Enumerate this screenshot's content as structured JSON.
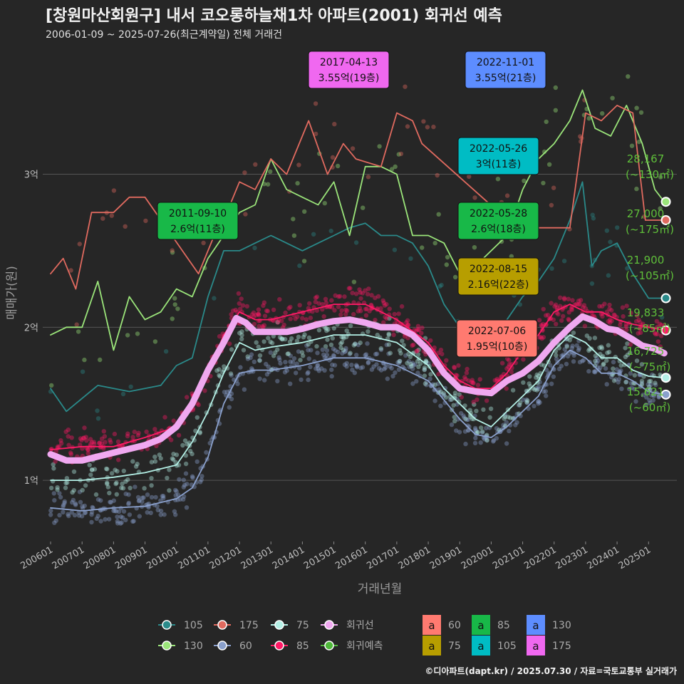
{
  "title": "[창원마산회원구] 내서 코오롱하늘채1차 아파트(2001) 회귀선 예측",
  "subtitle": "2006-01-09 ~ 2025-07-26(최근계약일) 전체 거래건",
  "credit": "©디아파트(dapt.kr) / 2025.07.30 / 자료=국토교통부 실거래가",
  "chart_data": {
    "type": "line",
    "xlabel": "거래년월",
    "ylabel": "매매가(원)",
    "x_ticks": [
      "200601",
      "200701",
      "200801",
      "200901",
      "201001",
      "201101",
      "201201",
      "201301",
      "201401",
      "201501",
      "201601",
      "201701",
      "201801",
      "201901",
      "202001",
      "202101",
      "202201",
      "202301",
      "202401",
      "202501"
    ],
    "y_ticks": [
      {
        "value": 1,
        "label": "1억"
      },
      {
        "value": 2,
        "label": "2억"
      },
      {
        "value": 3,
        "label": "3억"
      }
    ],
    "xlim": [
      2005.75,
      2025.9
    ],
    "ylim": [
      0.6,
      3.85
    ],
    "grid": true,
    "series": [
      {
        "name": "105",
        "color": "#2a8a8a",
        "points": [
          [
            2006.0,
            1.6
          ],
          [
            2006.5,
            1.45
          ],
          [
            2007.5,
            1.62
          ],
          [
            2008.5,
            1.58
          ],
          [
            2009.5,
            1.62
          ],
          [
            2010.0,
            1.75
          ],
          [
            2010.5,
            1.8
          ],
          [
            2011.0,
            2.2
          ],
          [
            2011.5,
            2.5
          ],
          [
            2012.0,
            2.5
          ],
          [
            2012.5,
            2.55
          ],
          [
            2013.0,
            2.6
          ],
          [
            2013.5,
            2.55
          ],
          [
            2014.0,
            2.5
          ],
          [
            2014.5,
            2.55
          ],
          [
            2015.0,
            2.6
          ],
          [
            2015.5,
            2.65
          ],
          [
            2016.0,
            2.68
          ],
          [
            2016.5,
            2.6
          ],
          [
            2017.0,
            2.6
          ],
          [
            2017.5,
            2.55
          ],
          [
            2018.0,
            2.4
          ],
          [
            2018.5,
            2.15
          ],
          [
            2019.0,
            2.0
          ],
          [
            2019.5,
            1.95
          ],
          [
            2020.0,
            1.95
          ],
          [
            2020.5,
            2.05
          ],
          [
            2021.0,
            2.2
          ],
          [
            2021.5,
            2.3
          ],
          [
            2022.0,
            2.45
          ],
          [
            2022.5,
            2.7
          ],
          [
            2022.9,
            2.95
          ],
          [
            2023.2,
            2.4
          ],
          [
            2023.5,
            2.5
          ],
          [
            2024.0,
            2.55
          ],
          [
            2024.5,
            2.35
          ],
          [
            2025.0,
            2.19
          ],
          [
            2025.5,
            2.19
          ]
        ]
      },
      {
        "name": "130",
        "color": "#9be57a",
        "points": [
          [
            2006.0,
            1.95
          ],
          [
            2006.5,
            2.0
          ],
          [
            2007.0,
            2.0
          ],
          [
            2007.5,
            2.3
          ],
          [
            2008.0,
            1.85
          ],
          [
            2008.5,
            2.2
          ],
          [
            2009.0,
            2.05
          ],
          [
            2009.5,
            2.1
          ],
          [
            2010.0,
            2.25
          ],
          [
            2010.5,
            2.2
          ],
          [
            2011.0,
            2.45
          ],
          [
            2011.5,
            2.6
          ],
          [
            2012.0,
            2.75
          ],
          [
            2012.5,
            2.8
          ],
          [
            2013.0,
            3.1
          ],
          [
            2013.5,
            2.9
          ],
          [
            2014.0,
            2.85
          ],
          [
            2014.5,
            2.8
          ],
          [
            2015.0,
            2.95
          ],
          [
            2015.5,
            2.6
          ],
          [
            2016.0,
            3.05
          ],
          [
            2016.5,
            3.05
          ],
          [
            2017.0,
            3.0
          ],
          [
            2017.5,
            2.6
          ],
          [
            2018.0,
            2.6
          ],
          [
            2018.5,
            2.55
          ],
          [
            2019.0,
            2.35
          ],
          [
            2019.5,
            2.4
          ],
          [
            2020.0,
            2.5
          ],
          [
            2020.5,
            2.6
          ],
          [
            2021.0,
            2.9
          ],
          [
            2021.5,
            3.1
          ],
          [
            2022.0,
            3.2
          ],
          [
            2022.5,
            3.35
          ],
          [
            2022.9,
            3.55
          ],
          [
            2023.3,
            3.3
          ],
          [
            2023.8,
            3.25
          ],
          [
            2024.3,
            3.45
          ],
          [
            2024.8,
            3.2
          ],
          [
            2025.2,
            2.9
          ],
          [
            2025.5,
            2.82
          ]
        ]
      },
      {
        "name": "175",
        "color": "#e06a5f",
        "points": [
          [
            2006.0,
            2.35
          ],
          [
            2006.4,
            2.45
          ],
          [
            2006.8,
            2.25
          ],
          [
            2007.3,
            2.75
          ],
          [
            2008.0,
            2.75
          ],
          [
            2008.5,
            2.85
          ],
          [
            2009.0,
            2.85
          ],
          [
            2010.7,
            2.35
          ],
          [
            2011.2,
            2.6
          ],
          [
            2011.6,
            2.75
          ],
          [
            2012.0,
            2.95
          ],
          [
            2012.5,
            2.9
          ],
          [
            2013.0,
            3.1
          ],
          [
            2013.5,
            3.0
          ],
          [
            2014.2,
            3.35
          ],
          [
            2014.8,
            3.0
          ],
          [
            2015.3,
            3.2
          ],
          [
            2015.7,
            3.1
          ],
          [
            2016.5,
            3.05
          ],
          [
            2017.0,
            3.4
          ],
          [
            2017.5,
            3.35
          ],
          [
            2017.8,
            3.2
          ],
          [
            2020.8,
            2.65
          ],
          [
            2022.5,
            2.65
          ],
          [
            2023.0,
            3.4
          ],
          [
            2023.5,
            3.35
          ],
          [
            2024.0,
            3.45
          ],
          [
            2024.5,
            3.4
          ],
          [
            2024.9,
            2.7
          ],
          [
            2025.5,
            2.7
          ]
        ]
      },
      {
        "name": "60",
        "color": "#8aa0cc",
        "points": [
          [
            2006.0,
            0.82
          ],
          [
            2007.0,
            0.8
          ],
          [
            2008.0,
            0.82
          ],
          [
            2009.0,
            0.83
          ],
          [
            2010.0,
            0.88
          ],
          [
            2010.5,
            0.95
          ],
          [
            2011.0,
            1.15
          ],
          [
            2011.5,
            1.5
          ],
          [
            2012.0,
            1.7
          ],
          [
            2012.5,
            1.72
          ],
          [
            2013.0,
            1.72
          ],
          [
            2014.0,
            1.75
          ],
          [
            2015.0,
            1.8
          ],
          [
            2016.0,
            1.8
          ],
          [
            2017.0,
            1.75
          ],
          [
            2018.0,
            1.65
          ],
          [
            2019.0,
            1.4
          ],
          [
            2019.5,
            1.3
          ],
          [
            2020.0,
            1.28
          ],
          [
            2020.5,
            1.35
          ],
          [
            2021.0,
            1.45
          ],
          [
            2021.5,
            1.55
          ],
          [
            2022.0,
            1.75
          ],
          [
            2022.5,
            1.85
          ],
          [
            2023.0,
            1.8
          ],
          [
            2023.5,
            1.7
          ],
          [
            2024.0,
            1.7
          ],
          [
            2024.5,
            1.65
          ],
          [
            2025.0,
            1.58
          ],
          [
            2025.5,
            1.56
          ]
        ]
      },
      {
        "name": "75",
        "color": "#b4f0e6",
        "points": [
          [
            2006.0,
            1.0
          ],
          [
            2007.0,
            1.0
          ],
          [
            2008.0,
            1.02
          ],
          [
            2009.0,
            1.05
          ],
          [
            2010.0,
            1.1
          ],
          [
            2010.5,
            1.25
          ],
          [
            2011.0,
            1.45
          ],
          [
            2011.5,
            1.7
          ],
          [
            2012.0,
            1.9
          ],
          [
            2012.5,
            1.85
          ],
          [
            2013.0,
            1.87
          ],
          [
            2014.0,
            1.9
          ],
          [
            2015.0,
            1.95
          ],
          [
            2016.0,
            1.95
          ],
          [
            2017.0,
            1.9
          ],
          [
            2018.0,
            1.75
          ],
          [
            2018.5,
            1.6
          ],
          [
            2019.0,
            1.5
          ],
          [
            2019.5,
            1.4
          ],
          [
            2020.0,
            1.35
          ],
          [
            2020.5,
            1.45
          ],
          [
            2021.0,
            1.55
          ],
          [
            2021.5,
            1.65
          ],
          [
            2022.0,
            1.85
          ],
          [
            2022.5,
            1.95
          ],
          [
            2023.0,
            1.9
          ],
          [
            2023.5,
            1.8
          ],
          [
            2024.0,
            1.8
          ],
          [
            2024.5,
            1.72
          ],
          [
            2025.0,
            1.68
          ],
          [
            2025.5,
            1.67
          ]
        ]
      },
      {
        "name": "85",
        "color": "#ff1a66",
        "points": [
          [
            2006.0,
            1.2
          ],
          [
            2007.0,
            1.22
          ],
          [
            2008.0,
            1.22
          ],
          [
            2009.0,
            1.28
          ],
          [
            2010.0,
            1.35
          ],
          [
            2010.5,
            1.5
          ],
          [
            2011.0,
            1.7
          ],
          [
            2011.5,
            1.95
          ],
          [
            2012.0,
            2.1
          ],
          [
            2012.5,
            2.05
          ],
          [
            2013.0,
            2.05
          ],
          [
            2014.0,
            2.1
          ],
          [
            2015.0,
            2.15
          ],
          [
            2016.0,
            2.15
          ],
          [
            2017.0,
            2.05
          ],
          [
            2018.0,
            1.9
          ],
          [
            2018.5,
            1.75
          ],
          [
            2019.0,
            1.65
          ],
          [
            2019.5,
            1.6
          ],
          [
            2020.0,
            1.6
          ],
          [
            2020.5,
            1.7
          ],
          [
            2021.0,
            1.85
          ],
          [
            2021.5,
            1.95
          ],
          [
            2022.0,
            2.1
          ],
          [
            2022.5,
            2.15
          ],
          [
            2023.0,
            2.1
          ],
          [
            2023.5,
            2.1
          ],
          [
            2024.0,
            2.05
          ],
          [
            2024.5,
            2.02
          ],
          [
            2025.0,
            2.0
          ],
          [
            2025.5,
            1.98
          ]
        ]
      },
      {
        "name": "회귀선",
        "color": "#f0a8f0",
        "points": [
          [
            2006.0,
            1.17
          ],
          [
            2006.5,
            1.13
          ],
          [
            2007.0,
            1.13
          ],
          [
            2008.0,
            1.18
          ],
          [
            2009.0,
            1.23
          ],
          [
            2009.5,
            1.27
          ],
          [
            2010.0,
            1.35
          ],
          [
            2010.5,
            1.5
          ],
          [
            2011.0,
            1.72
          ],
          [
            2011.5,
            1.9
          ],
          [
            2011.9,
            2.06
          ],
          [
            2012.2,
            2.03
          ],
          [
            2012.5,
            1.97
          ],
          [
            2013.0,
            1.97
          ],
          [
            2013.5,
            1.97
          ],
          [
            2014.0,
            1.99
          ],
          [
            2014.5,
            2.02
          ],
          [
            2015.0,
            2.04
          ],
          [
            2015.5,
            2.05
          ],
          [
            2016.0,
            2.03
          ],
          [
            2016.5,
            2.0
          ],
          [
            2017.0,
            2.0
          ],
          [
            2017.5,
            1.95
          ],
          [
            2018.0,
            1.85
          ],
          [
            2018.5,
            1.7
          ],
          [
            2019.0,
            1.6
          ],
          [
            2019.5,
            1.58
          ],
          [
            2020.0,
            1.57
          ],
          [
            2020.5,
            1.65
          ],
          [
            2021.0,
            1.7
          ],
          [
            2021.5,
            1.78
          ],
          [
            2022.0,
            1.9
          ],
          [
            2022.5,
            2.0
          ],
          [
            2022.9,
            2.07
          ],
          [
            2023.3,
            2.04
          ],
          [
            2023.7,
            1.99
          ],
          [
            2024.0,
            1.98
          ],
          [
            2024.5,
            1.92
          ],
          [
            2024.8,
            1.88
          ],
          [
            2025.2,
            1.86
          ],
          [
            2025.5,
            1.83
          ]
        ]
      }
    ],
    "annotations": [
      {
        "date": "2017-04-13",
        "price": "3.55억(19층)",
        "color": "#f068f0",
        "x": 2017.28,
        "y": 3.55
      },
      {
        "date": "2022-11-01",
        "price": "3.55억(21층)",
        "color": "#5d8dff",
        "x": 2022.83,
        "y": 3.55
      },
      {
        "date": "2022-05-26",
        "price": "3억(11층)",
        "color": "#00bcc4",
        "x": 2022.4,
        "y": 3.0
      },
      {
        "date": "2011-09-10",
        "price": "2.6억(11층)",
        "color": "#18b848",
        "x": 2011.7,
        "y": 2.6
      },
      {
        "date": "2022-05-28",
        "price": "2.6억(18층)",
        "color": "#18b848",
        "x": 2022.4,
        "y": 2.6
      },
      {
        "date": "2022-08-15",
        "price": "2.16억(22층)",
        "color": "#b79e00",
        "x": 2022.6,
        "y": 2.16
      },
      {
        "date": "2022-07-06",
        "price": "1.95억(10층)",
        "color": "#ff7a70",
        "x": 2022.5,
        "y": 1.95
      }
    ],
    "end_labels": [
      {
        "value": "28,167",
        "area": "(~130㎡)",
        "color": "#9be57a",
        "y": 2.82
      },
      {
        "value": "27,000",
        "area": "(~175㎡)",
        "color": "#e06a5f",
        "y": 2.7
      },
      {
        "value": "21,900",
        "area": "(~105㎡)",
        "color": "#2a8a8a",
        "y": 2.19
      },
      {
        "value": "19,833",
        "area": "(~85㎡)",
        "color": "#ff1a66",
        "y": 1.98
      },
      {
        "value": "16,725",
        "area": "(~75㎡)",
        "color": "#b4f0e6",
        "y": 1.67
      },
      {
        "value": "15,621",
        "area": "(~60㎡)",
        "color": "#8aa0cc",
        "y": 1.56
      }
    ],
    "legend": {
      "placement": "bottom",
      "line_items": [
        {
          "label": "105",
          "color": "#2a8a8a"
        },
        {
          "label": "175",
          "color": "#e06a5f"
        },
        {
          "label": "75",
          "color": "#b4f0e6"
        },
        {
          "label": "회귀선",
          "color": "#f0a8f0"
        },
        {
          "label": "130",
          "color": "#9be57a"
        },
        {
          "label": "60",
          "color": "#8aa0cc"
        },
        {
          "label": "85",
          "color": "#ff1a66"
        },
        {
          "label": "회귀예측",
          "color": "#4fb83a"
        }
      ],
      "box_items": [
        {
          "label": "60",
          "color": "#ff7a70",
          "glyph": "a"
        },
        {
          "label": "85",
          "color": "#18b848",
          "glyph": "a"
        },
        {
          "label": "130",
          "color": "#5d8dff",
          "glyph": "a"
        },
        {
          "label": "75",
          "color": "#b79e00",
          "glyph": "a"
        },
        {
          "label": "105",
          "color": "#00bcc4",
          "glyph": "a"
        },
        {
          "label": "175",
          "color": "#f068f0",
          "glyph": "a"
        }
      ]
    }
  }
}
